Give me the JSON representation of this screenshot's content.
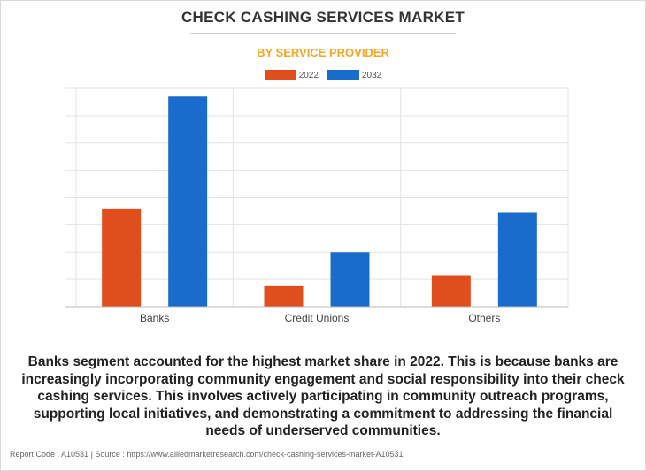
{
  "title": "CHECK CASHING SERVICES MARKET",
  "subtitle": "BY SERVICE PROVIDER",
  "description": "Banks segment accounted for the highest market share in 2022. This is because banks are increasingly incorporating community engagement and social responsibility into their check cashing services. This involves actively participating in community outreach programs, supporting local initiatives, and demonstrating a commitment to addressing the financial needs of underserved communities.",
  "footer": "Report Code : A10531  |  Source : https://www.alliedmarketresearch.com/check-cashing-services-market-A10531",
  "colors": {
    "y2022": "#e04e1e",
    "y2032": "#1a6ccc",
    "grid": "#e3e3e3",
    "axis": "#bbbbbb"
  },
  "chart_data": {
    "type": "bar",
    "categories": [
      "Banks",
      "Credit Unions",
      "Others"
    ],
    "series": [
      {
        "name": "2022",
        "values": [
          3.6,
          0.75,
          1.15
        ]
      },
      {
        "name": "2032",
        "values": [
          7.7,
          2.0,
          3.45
        ]
      }
    ],
    "ylim": [
      0,
      8
    ],
    "grid": true,
    "legend_position": "top-center"
  }
}
